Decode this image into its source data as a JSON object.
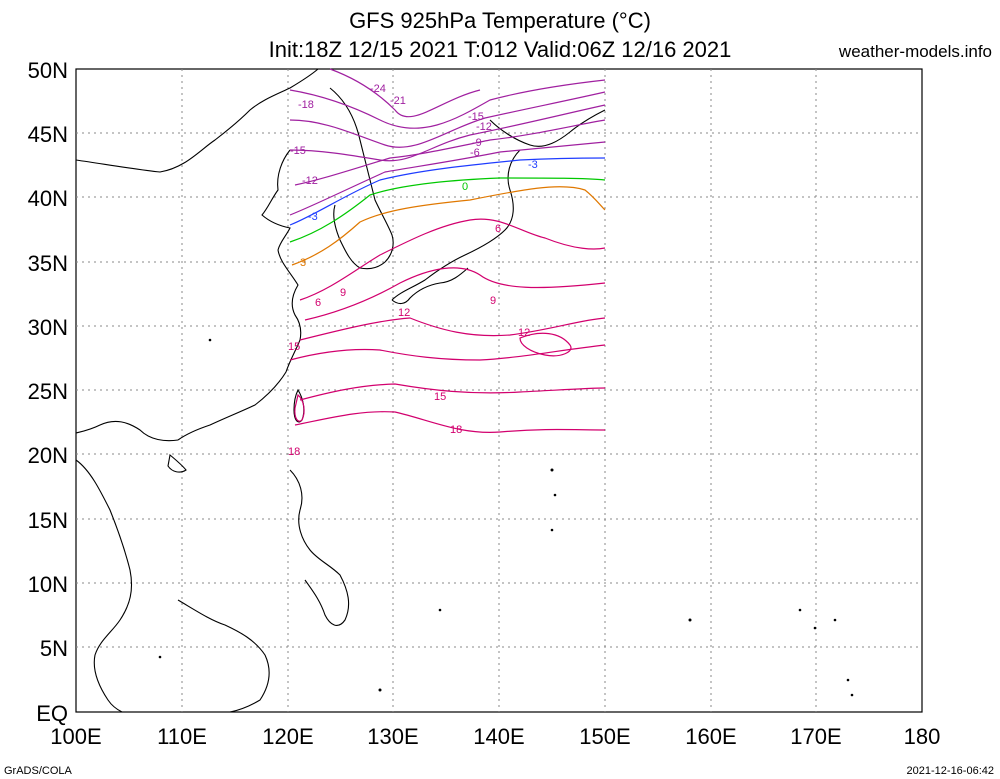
{
  "header": {
    "title_line1": "GFS 925hPa Temperature (°C)",
    "title_line2": "Init:18Z 12/15 2021 T:012 Valid:06Z 12/16 2021",
    "site": "weather-models.info"
  },
  "axes": {
    "lat_labels": [
      "50N",
      "45N",
      "40N",
      "35N",
      "30N",
      "25N",
      "20N",
      "15N",
      "10N",
      "5N",
      "EQ"
    ],
    "lon_labels": [
      "100E",
      "110E",
      "120E",
      "130E",
      "140E",
      "150E",
      "160E",
      "170E",
      "180"
    ]
  },
  "contours": [
    {
      "label": "-24",
      "color": "#a020a0"
    },
    {
      "label": "-21",
      "color": "#a020a0"
    },
    {
      "label": "-18",
      "color": "#a020a0"
    },
    {
      "label": "-15",
      "color": "#a020a0"
    },
    {
      "label": "-12",
      "color": "#a020a0"
    },
    {
      "label": "-9",
      "color": "#a020a0"
    },
    {
      "label": "-6",
      "color": "#a020a0"
    },
    {
      "label": "-3",
      "color": "#1e3cff"
    },
    {
      "label": "0",
      "color": "#00c800"
    },
    {
      "label": "3",
      "color": "#e07800"
    },
    {
      "label": "6",
      "color": "#d2006e"
    },
    {
      "label": "9",
      "color": "#d2006e"
    },
    {
      "label": "12",
      "color": "#d2006e"
    },
    {
      "label": "15",
      "color": "#d2006e"
    },
    {
      "label": "18",
      "color": "#d2006e"
    }
  ],
  "footer": {
    "left": "GrADS/COLA",
    "right": "2021-12-16-06:42"
  }
}
